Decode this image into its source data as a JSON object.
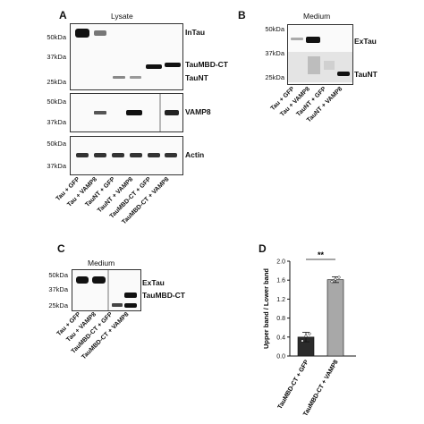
{
  "panelA": {
    "letter": "A",
    "title": "Lysate",
    "blot1_mw": [
      "50kDa",
      "37kDa",
      "25kDa"
    ],
    "blot1_labels": [
      "InTau",
      "TauMBD-CT",
      "TauNT"
    ],
    "blot2_mw": [
      "50kDa",
      "37kDa"
    ],
    "blot2_label": "VAMP8",
    "blot3_mw": [
      "50kDa",
      "37kDa"
    ],
    "blot3_label": "Actin",
    "lanes": [
      "Tau + GFP",
      "Tau + VAMP8",
      "TauNT + GFP",
      "TauNT + VAMP8",
      "TauMBD-CT + GFP",
      "TauMBD-CT + VAMP8"
    ]
  },
  "panelB": {
    "letter": "B",
    "title": "Medium",
    "mw": [
      "50kDa",
      "37kDa",
      "25kDa"
    ],
    "labels": [
      "ExTau",
      "TauNT"
    ],
    "lanes": [
      "Tau + GFP",
      "Tau + VAMP8",
      "TauNT + GFP",
      "TauNT + VAMP8"
    ]
  },
  "panelC": {
    "letter": "C",
    "title": "Medium",
    "mw": [
      "50kDa",
      "37kDa",
      "25kDa"
    ],
    "labels": [
      "ExTau",
      "TauMBD-CT"
    ],
    "lanes": [
      "Tau + GFP",
      "Tau + VAMP8",
      "TauMBD-CT + GFP",
      "TauMBD-CT + VAMP8"
    ]
  },
  "panelD": {
    "letter": "D",
    "significance": "**"
  },
  "chart_data": {
    "type": "bar",
    "categories": [
      "TauMBD-CT + GFP",
      "TauMBD-CT + VAMP8"
    ],
    "values": [
      0.4,
      1.61
    ],
    "errors": [
      0.1,
      0.06
    ],
    "ylabel": "Upper band / Lower band",
    "ylim": [
      0,
      2.0
    ],
    "yticks": [
      "0.0",
      "0.4",
      "0.8",
      "1.2",
      "1.6",
      "2.0"
    ],
    "bar_colors": [
      "#2b2b2b",
      "#a8a8a8"
    ],
    "points": [
      [
        0.32,
        0.42,
        0.47
      ],
      [
        1.57,
        1.62,
        1.66
      ]
    ]
  }
}
